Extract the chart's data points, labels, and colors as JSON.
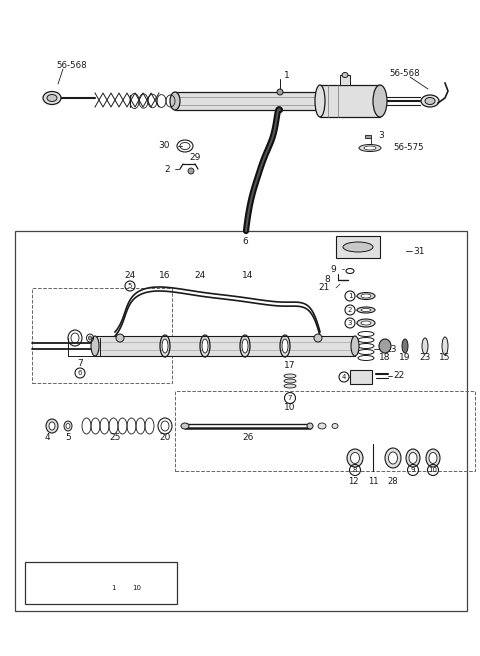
{
  "bg_color": "#ffffff",
  "lc": "#1a1a1a",
  "gray1": "#c8c8c8",
  "gray2": "#e0e0e0",
  "gray3": "#a0a0a0",
  "figw": 4.8,
  "figh": 6.56,
  "dpi": 100
}
